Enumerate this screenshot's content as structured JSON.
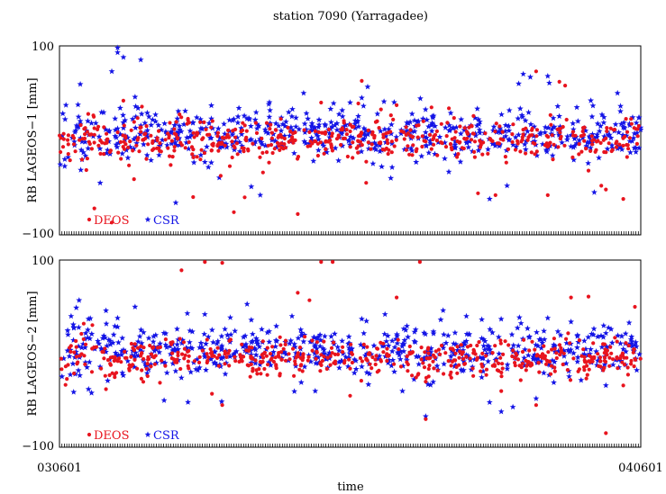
{
  "title": "station 7090 (Yarragadee)",
  "xlabel": "time",
  "x_ticks": {
    "start": "030601",
    "end": "040601"
  },
  "colors": {
    "deos": "#e8141e",
    "csr": "#1414e6"
  },
  "chart_data": [
    {
      "type": "scatter",
      "ylabel": "RB LAGEOS−1 [mm]",
      "ylim": [
        -100,
        100
      ],
      "ytick_top": "100",
      "ytick_bottom": "−100",
      "xlim": [
        "030601",
        "040601"
      ],
      "legend": "bottom-left",
      "series": [
        {
          "name": "DEOS",
          "marker": "dot",
          "color": "#e8141e",
          "center": 0,
          "spread": 10,
          "n": 560,
          "outliers": [
            [
              0.06,
              -72
            ],
            [
              0.09,
              -87
            ],
            [
              0.11,
              42
            ],
            [
              0.23,
              -60
            ],
            [
              0.3,
              -76
            ],
            [
              0.35,
              -34
            ],
            [
              0.41,
              -78
            ],
            [
              0.45,
              40
            ],
            [
              0.52,
              63
            ],
            [
              0.64,
              35
            ],
            [
              0.72,
              -56
            ],
            [
              0.75,
              -58
            ],
            [
              0.82,
              73
            ],
            [
              0.84,
              -58
            ],
            [
              0.86,
              62
            ],
            [
              0.87,
              58
            ],
            [
              0.91,
              -32
            ],
            [
              0.94,
              -52
            ],
            [
              0.97,
              -62
            ]
          ]
        },
        {
          "name": "CSR",
          "marker": "star",
          "color": "#1414e6",
          "center": 8,
          "spread": 14,
          "n": 620,
          "outliers": [
            [
              0.07,
              -45
            ],
            [
              0.09,
              73
            ],
            [
              0.1,
              93
            ],
            [
              0.1,
              98
            ],
            [
              0.11,
              88
            ],
            [
              0.13,
              46
            ],
            [
              0.2,
              -66
            ],
            [
              0.33,
              -49
            ],
            [
              0.42,
              50
            ],
            [
              0.5,
              40
            ],
            [
              0.52,
              45
            ],
            [
              0.57,
              -40
            ],
            [
              0.74,
              -62
            ],
            [
              0.77,
              -48
            ],
            [
              0.79,
              60
            ],
            [
              0.81,
              67
            ],
            [
              0.84,
              68
            ],
            [
              0.89,
              35
            ],
            [
              0.92,
              -55
            ],
            [
              0.96,
              50
            ]
          ]
        }
      ]
    },
    {
      "type": "scatter",
      "ylabel": "RB LAGEOS−2 [mm]",
      "ylim": [
        -100,
        100
      ],
      "ytick_top": "100",
      "ytick_bottom": "−100",
      "xlim": [
        "030601",
        "040601"
      ],
      "legend": "bottom-left",
      "series": [
        {
          "name": "DEOS",
          "marker": "dot",
          "color": "#e8141e",
          "center": -5,
          "spread": 10,
          "n": 560,
          "outliers": [
            [
              0.21,
              89
            ],
            [
              0.25,
              98
            ],
            [
              0.28,
              97
            ],
            [
              0.45,
              98
            ],
            [
              0.47,
              98
            ],
            [
              0.62,
              98
            ],
            [
              0.41,
              65
            ],
            [
              0.43,
              57
            ],
            [
              0.58,
              60
            ],
            [
              0.63,
              -70
            ],
            [
              0.88,
              60
            ],
            [
              0.91,
              61
            ],
            [
              0.94,
              -85
            ],
            [
              0.99,
              50
            ],
            [
              0.5,
              -45
            ],
            [
              0.82,
              -55
            ],
            [
              0.76,
              -40
            ],
            [
              0.28,
              -55
            ],
            [
              0.08,
              -38
            ],
            [
              0.97,
              -34
            ]
          ]
        },
        {
          "name": "CSR",
          "marker": "star",
          "color": "#1414e6",
          "center": 3,
          "spread": 13,
          "n": 620,
          "outliers": [
            [
              0.02,
              40
            ],
            [
              0.05,
              -38
            ],
            [
              0.08,
              46
            ],
            [
              0.1,
              38
            ],
            [
              0.13,
              50
            ],
            [
              0.18,
              -50
            ],
            [
              0.22,
              43
            ],
            [
              0.25,
              42
            ],
            [
              0.33,
              36
            ],
            [
              0.4,
              40
            ],
            [
              0.44,
              -40
            ],
            [
              0.52,
              37
            ],
            [
              0.56,
              42
            ],
            [
              0.59,
              -40
            ],
            [
              0.63,
              -67
            ],
            [
              0.7,
              40
            ],
            [
              0.74,
              -52
            ],
            [
              0.76,
              -62
            ],
            [
              0.78,
              -57
            ],
            [
              0.82,
              -48
            ],
            [
              0.84,
              38
            ],
            [
              0.88,
              34
            ],
            [
              0.94,
              -34
            ],
            [
              0.98,
              33
            ]
          ]
        }
      ]
    }
  ]
}
